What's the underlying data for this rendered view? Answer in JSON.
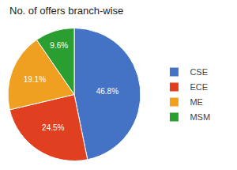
{
  "chart_data": {
    "type": "pie",
    "title": "No. of offers branch-wise",
    "categories": [
      "CSE",
      "ECE",
      "ME",
      "MSM"
    ],
    "values": [
      46.8,
      24.5,
      19.1,
      9.6
    ],
    "value_labels": [
      "46.8%",
      "24.5%",
      "19.1%",
      "9.6%"
    ],
    "colors": [
      "#4472C4",
      "#E04020",
      "#F0A020",
      "#2A9E30"
    ],
    "data_labels": true,
    "legend": "right"
  }
}
